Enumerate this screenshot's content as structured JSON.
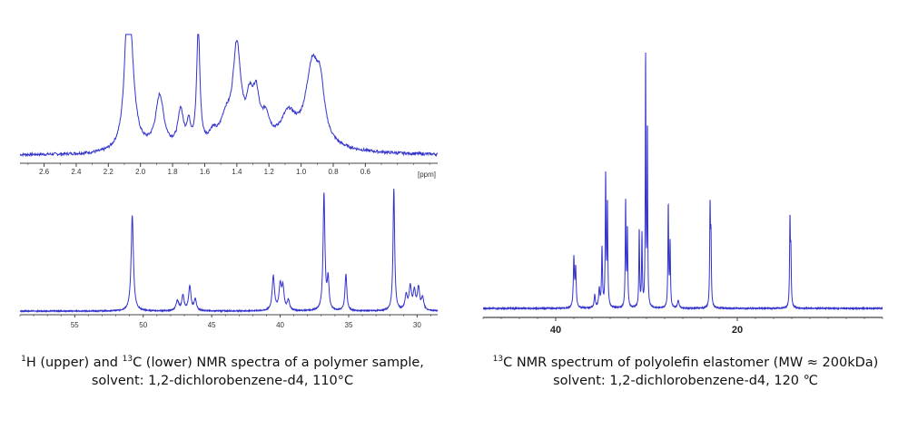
{
  "colors": {
    "spectrum": "#3333cc",
    "axis": "#444444"
  },
  "captions": {
    "left": {
      "line1_a": "H (upper) and ",
      "line1_b": "C (lower) NMR spectra of a polymer sample,",
      "sup1": "1",
      "sup2": "13",
      "line2": "solvent: 1,2-dichlorobenzene-d4, 110°C"
    },
    "right": {
      "sup": "13",
      "line1": "C NMR spectrum of polyolefin elastomer (MW ≈ 200kDa)",
      "line2": "solvent: 1,2-dichlorobenzene-d4,  120 ℃"
    }
  },
  "chart_data": [
    {
      "type": "line",
      "id": "h1-upper",
      "xlabel": "[ppm]",
      "xlim": [
        2.75,
        0.15
      ],
      "xticks": [
        "2.6",
        "2.4",
        "2.2",
        "2.0",
        "1.8",
        "1.6",
        "1.4",
        "1.2",
        "1.0",
        "0.8",
        "0.6"
      ],
      "tick_values": [
        2.6,
        2.4,
        2.2,
        2.0,
        1.8,
        1.6,
        1.4,
        1.2,
        1.0,
        0.8,
        0.6
      ],
      "baseline": 0.06,
      "peaks": [
        {
          "x": 2.08,
          "h": 0.95,
          "w": 0.022
        },
        {
          "x": 2.06,
          "h": 0.55,
          "w": 0.03
        },
        {
          "x": 1.88,
          "h": 0.43,
          "w": 0.03
        },
        {
          "x": 1.75,
          "h": 0.3,
          "w": 0.02
        },
        {
          "x": 1.7,
          "h": 0.18,
          "w": 0.015
        },
        {
          "x": 1.64,
          "h": 0.98,
          "w": 0.012
        },
        {
          "x": 1.55,
          "h": 0.1,
          "w": 0.03
        },
        {
          "x": 1.47,
          "h": 0.2,
          "w": 0.04
        },
        {
          "x": 1.4,
          "h": 0.8,
          "w": 0.03
        },
        {
          "x": 1.32,
          "h": 0.3,
          "w": 0.025
        },
        {
          "x": 1.28,
          "h": 0.35,
          "w": 0.025
        },
        {
          "x": 1.22,
          "h": 0.2,
          "w": 0.03
        },
        {
          "x": 1.08,
          "h": 0.25,
          "w": 0.06
        },
        {
          "x": 0.93,
          "h": 0.65,
          "w": 0.05
        },
        {
          "x": 0.88,
          "h": 0.35,
          "w": 0.03
        }
      ]
    },
    {
      "type": "line",
      "id": "c13-lower",
      "xlim": [
        59,
        28.5
      ],
      "xticks": [
        "55",
        "50",
        "45",
        "40",
        "35",
        "30"
      ],
      "tick_values": [
        55,
        50,
        45,
        40,
        35,
        30
      ],
      "baseline": 0.02,
      "peaks": [
        {
          "x": 50.8,
          "h": 0.78,
          "w": 0.1
        },
        {
          "x": 47.5,
          "h": 0.08,
          "w": 0.12
        },
        {
          "x": 47.1,
          "h": 0.12,
          "w": 0.1
        },
        {
          "x": 46.6,
          "h": 0.2,
          "w": 0.1
        },
        {
          "x": 46.2,
          "h": 0.09,
          "w": 0.1
        },
        {
          "x": 40.5,
          "h": 0.28,
          "w": 0.1
        },
        {
          "x": 40.0,
          "h": 0.2,
          "w": 0.1
        },
        {
          "x": 39.8,
          "h": 0.18,
          "w": 0.1
        },
        {
          "x": 39.4,
          "h": 0.08,
          "w": 0.1
        },
        {
          "x": 36.8,
          "h": 0.95,
          "w": 0.08
        },
        {
          "x": 36.5,
          "h": 0.25,
          "w": 0.08
        },
        {
          "x": 35.2,
          "h": 0.3,
          "w": 0.08
        },
        {
          "x": 31.7,
          "h": 1.0,
          "w": 0.07
        },
        {
          "x": 30.8,
          "h": 0.12,
          "w": 0.1
        },
        {
          "x": 30.5,
          "h": 0.19,
          "w": 0.1
        },
        {
          "x": 30.2,
          "h": 0.15,
          "w": 0.1
        },
        {
          "x": 29.9,
          "h": 0.18,
          "w": 0.1
        },
        {
          "x": 29.6,
          "h": 0.1,
          "w": 0.1
        }
      ]
    },
    {
      "type": "line",
      "id": "c13-right",
      "xlim": [
        48,
        4
      ],
      "xticks": [
        "40",
        "20"
      ],
      "tick_values": [
        40,
        20
      ],
      "baseline": 0.01,
      "peaks": [
        {
          "x": 38.0,
          "h": 0.19,
          "w": 0.07
        },
        {
          "x": 37.8,
          "h": 0.15,
          "w": 0.07
        },
        {
          "x": 35.7,
          "h": 0.05,
          "w": 0.08
        },
        {
          "x": 35.2,
          "h": 0.07,
          "w": 0.08
        },
        {
          "x": 34.9,
          "h": 0.23,
          "w": 0.06
        },
        {
          "x": 34.5,
          "h": 0.51,
          "w": 0.05
        },
        {
          "x": 34.3,
          "h": 0.4,
          "w": 0.05
        },
        {
          "x": 32.3,
          "h": 0.41,
          "w": 0.05
        },
        {
          "x": 32.1,
          "h": 0.3,
          "w": 0.05
        },
        {
          "x": 30.8,
          "h": 0.3,
          "w": 0.05
        },
        {
          "x": 30.5,
          "h": 0.28,
          "w": 0.05
        },
        {
          "x": 30.1,
          "h": 1.0,
          "w": 0.04
        },
        {
          "x": 29.9,
          "h": 0.7,
          "w": 0.04
        },
        {
          "x": 27.6,
          "h": 0.4,
          "w": 0.05
        },
        {
          "x": 27.4,
          "h": 0.25,
          "w": 0.05
        },
        {
          "x": 26.5,
          "h": 0.03,
          "w": 0.1
        },
        {
          "x": 23.0,
          "h": 0.38,
          "w": 0.05
        },
        {
          "x": 22.9,
          "h": 0.25,
          "w": 0.05
        },
        {
          "x": 14.2,
          "h": 0.33,
          "w": 0.05
        },
        {
          "x": 14.1,
          "h": 0.2,
          "w": 0.05
        }
      ]
    }
  ]
}
